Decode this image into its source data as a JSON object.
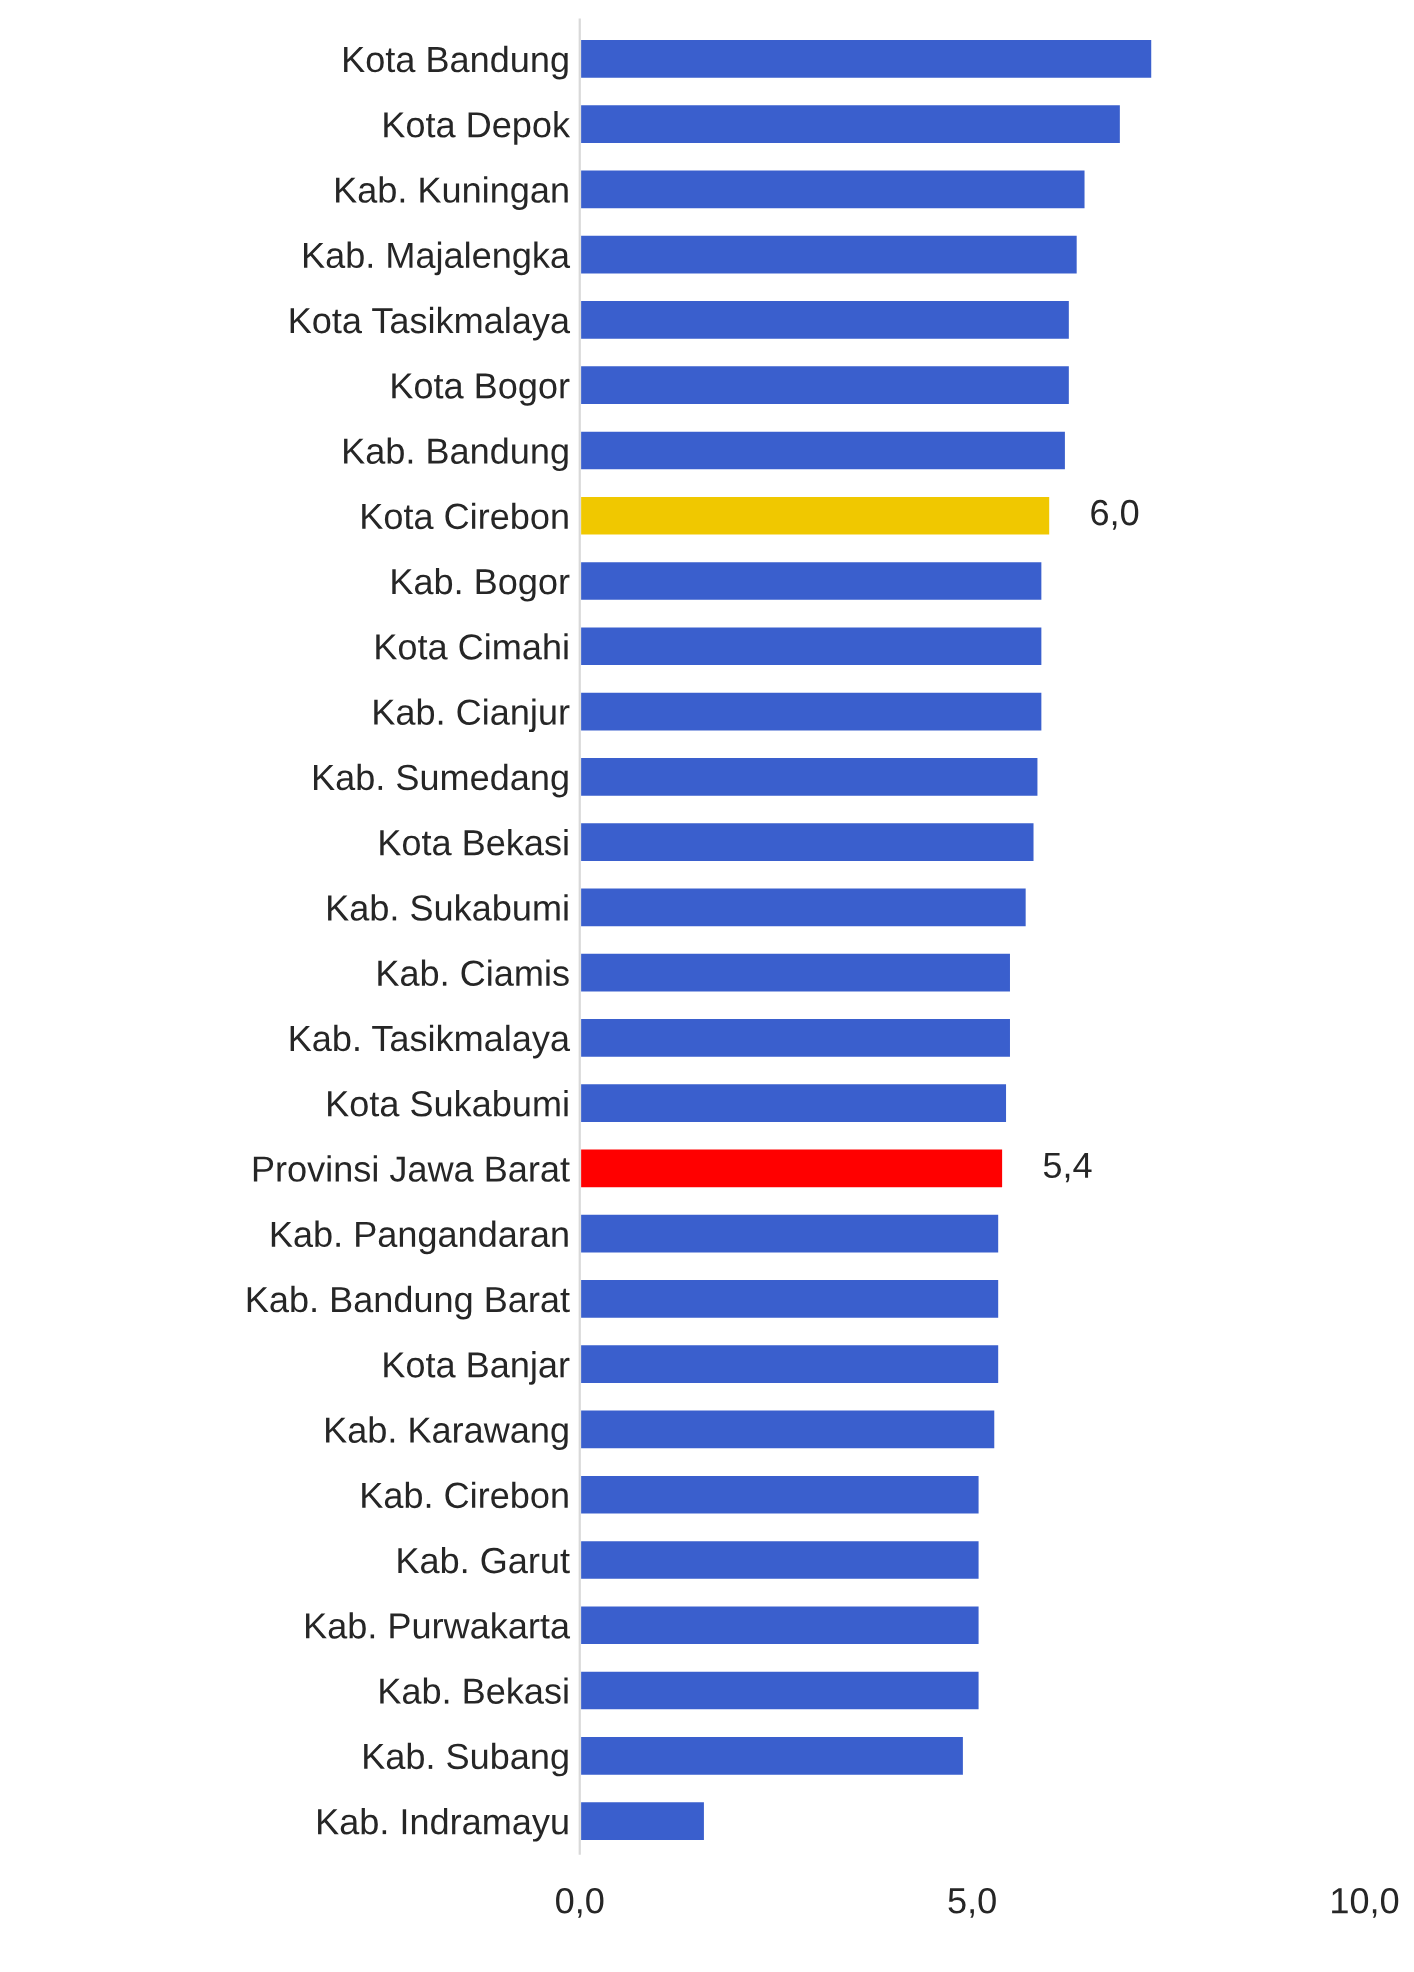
{
  "chart_data": {
    "type": "bar",
    "orientation": "horizontal",
    "categories": [
      "Kota Bandung",
      "Kota Depok",
      "Kab. Kuningan",
      "Kab. Majalengka",
      "Kota Tasikmalaya",
      "Kota Bogor",
      "Kab. Bandung",
      "Kota Cirebon",
      "Kab. Bogor",
      "Kota Cimahi",
      "Kab. Cianjur",
      "Kab. Sumedang",
      "Kota Bekasi",
      "Kab. Sukabumi",
      "Kab. Ciamis",
      "Kab. Tasikmalaya",
      "Kota Sukabumi",
      "Provinsi Jawa Barat",
      "Kab. Pangandaran",
      "Kab. Bandung Barat",
      "Kota Banjar",
      "Kab. Karawang",
      "Kab. Cirebon",
      "Kab. Garut",
      "Kab. Purwakarta",
      "Kab. Bekasi",
      "Kab. Subang",
      "Kab. Indramayu"
    ],
    "values": [
      7.3,
      6.9,
      6.45,
      6.35,
      6.25,
      6.25,
      6.2,
      6.0,
      5.9,
      5.9,
      5.9,
      5.85,
      5.8,
      5.7,
      5.5,
      5.5,
      5.45,
      5.4,
      5.35,
      5.35,
      5.35,
      5.3,
      5.1,
      5.1,
      5.1,
      5.1,
      4.9,
      1.6
    ],
    "colors": [
      "#3a5fcd",
      "#3a5fcd",
      "#3a5fcd",
      "#3a5fcd",
      "#3a5fcd",
      "#3a5fcd",
      "#3a5fcd",
      "#f0c800",
      "#3a5fcd",
      "#3a5fcd",
      "#3a5fcd",
      "#3a5fcd",
      "#3a5fcd",
      "#3a5fcd",
      "#3a5fcd",
      "#3a5fcd",
      "#3a5fcd",
      "#ff0000",
      "#3a5fcd",
      "#3a5fcd",
      "#3a5fcd",
      "#3a5fcd",
      "#3a5fcd",
      "#3a5fcd",
      "#3a5fcd",
      "#3a5fcd",
      "#3a5fcd",
      "#3a5fcd"
    ],
    "value_labels": [
      null,
      null,
      null,
      null,
      null,
      null,
      null,
      "6,0",
      null,
      null,
      null,
      null,
      null,
      null,
      null,
      null,
      null,
      "5,4",
      null,
      null,
      null,
      null,
      null,
      null,
      null,
      null,
      null,
      null
    ],
    "xlim": [
      0,
      10
    ],
    "xticks": [
      {
        "value": 0,
        "label": "0,0"
      },
      {
        "value": 5,
        "label": "5,0"
      },
      {
        "value": 10,
        "label": "10,0"
      }
    ],
    "grid": false,
    "legend": false
  }
}
